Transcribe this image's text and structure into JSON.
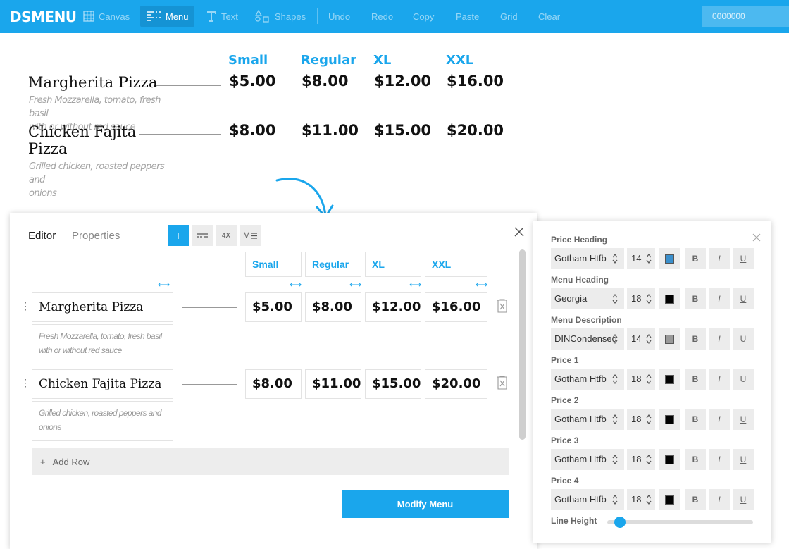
{
  "app": {
    "logo": "DSMENU"
  },
  "toolbar": {
    "items": [
      {
        "label": "Canvas",
        "icon": "canvas-icon"
      },
      {
        "label": "Menu",
        "icon": "menu-icon",
        "active": true
      },
      {
        "label": "Text",
        "icon": "text-icon"
      },
      {
        "label": "Shapes",
        "icon": "shapes-icon"
      },
      {
        "label": "Undo"
      },
      {
        "label": "Redo"
      },
      {
        "label": "Copy"
      },
      {
        "label": "Paste"
      },
      {
        "label": "Grid"
      },
      {
        "label": "Clear"
      }
    ],
    "color_value": "0000000"
  },
  "menu": {
    "sizes": [
      "Small",
      "Regular",
      "XL",
      "XXL"
    ],
    "items": [
      {
        "name": "Margherita Pizza",
        "preview_name_lines": [
          "Margherita Pizza"
        ],
        "description": "Fresh Mozzarella, tomato, fresh basil with or without red sauce",
        "preview_desc_lines": [
          "Fresh Mozzarella, tomato, fresh basil",
          "with or without red sauce"
        ],
        "prices": [
          "$5.00",
          "$8.00",
          "$12.00",
          "$16.00"
        ]
      },
      {
        "name": "Chicken Fajita Pizza",
        "preview_name_lines": [
          "Chicken Fajita",
          "Pizza"
        ],
        "description": "Grilled chicken, roasted peppers and onions",
        "preview_desc_lines": [
          "Grilled chicken, roasted peppers and",
          "onions"
        ],
        "prices": [
          "$8.00",
          "$11.00",
          "$15.00",
          "$20.00"
        ]
      }
    ]
  },
  "editor": {
    "tabs": [
      "Editor",
      "Properties"
    ],
    "tools": [
      "T",
      "4X",
      "M"
    ],
    "add_row_label": "Add Row",
    "modify_button": "Modify Menu"
  },
  "properties": {
    "groups": [
      {
        "label": "Price Heading",
        "font": "Gotham Htfb",
        "size": "14",
        "color": "#3a8fcc"
      },
      {
        "label": "Menu Heading",
        "font": "Georgia",
        "size": "18",
        "color": "#000000"
      },
      {
        "label": "Menu Description",
        "font": "DINCondensed",
        "size": "14",
        "color": "#999999"
      },
      {
        "label": "Price 1",
        "font": "Gotham Htfb",
        "size": "18",
        "color": "#000000"
      },
      {
        "label": "Price 2",
        "font": "Gotham Htfb",
        "size": "18",
        "color": "#000000"
      },
      {
        "label": "Price 3",
        "font": "Gotham Htfb",
        "size": "18",
        "color": "#000000"
      },
      {
        "label": "Price 4",
        "font": "Gotham Htfb",
        "size": "18",
        "color": "#000000"
      }
    ],
    "format_buttons": [
      "B",
      "I",
      "U"
    ],
    "line_height_label": "Line Height",
    "line_height_value": 0.05
  },
  "colors": {
    "accent": "#1aa6ec"
  }
}
